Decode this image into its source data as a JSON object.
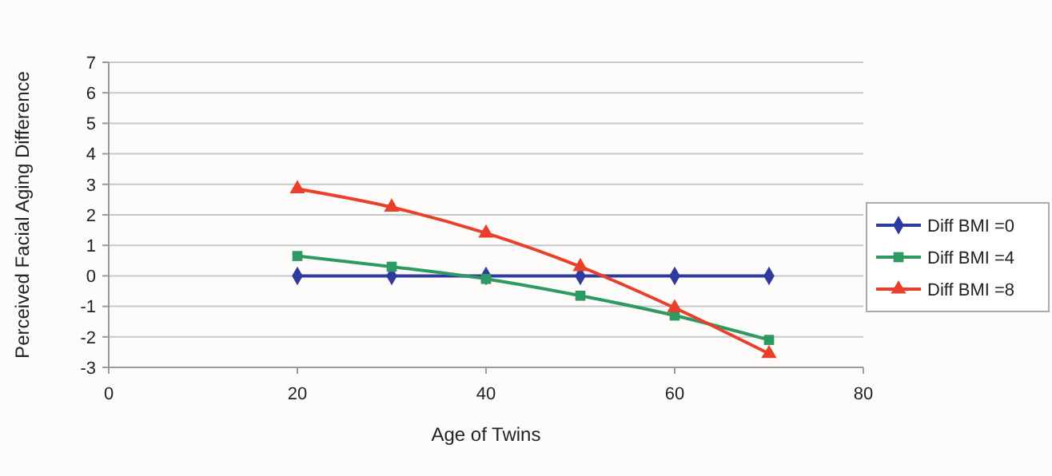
{
  "chart_data": {
    "type": "line",
    "xlabel": "Age of Twins",
    "ylabel": "Perceived Facial Aging Difference",
    "x": [
      20,
      30,
      40,
      50,
      60,
      70
    ],
    "series": [
      {
        "name": "Diff BMI =0",
        "color": "#2e3a9e",
        "values": [
          0,
          0,
          0,
          0,
          0,
          0
        ],
        "marker": "diamond"
      },
      {
        "name": "Diff BMI =4",
        "color": "#2e9a62",
        "values": [
          0.65,
          0.3,
          -0.1,
          -0.65,
          -1.3,
          -2.1
        ],
        "marker": "square"
      },
      {
        "name": "Diff BMI =8",
        "color": "#e8402a",
        "values": [
          2.85,
          2.25,
          1.4,
          0.3,
          -1.05,
          -2.55
        ],
        "marker": "triangle"
      }
    ],
    "xlim": [
      0,
      80
    ],
    "xticks": [
      0,
      20,
      40,
      60,
      80
    ],
    "ylim": [
      -3,
      7
    ],
    "yticks": [
      -3,
      -2,
      -1,
      0,
      1,
      2,
      3,
      4,
      5,
      6,
      7
    ],
    "grid": "y",
    "legend": "right",
    "line_style": "solid"
  }
}
